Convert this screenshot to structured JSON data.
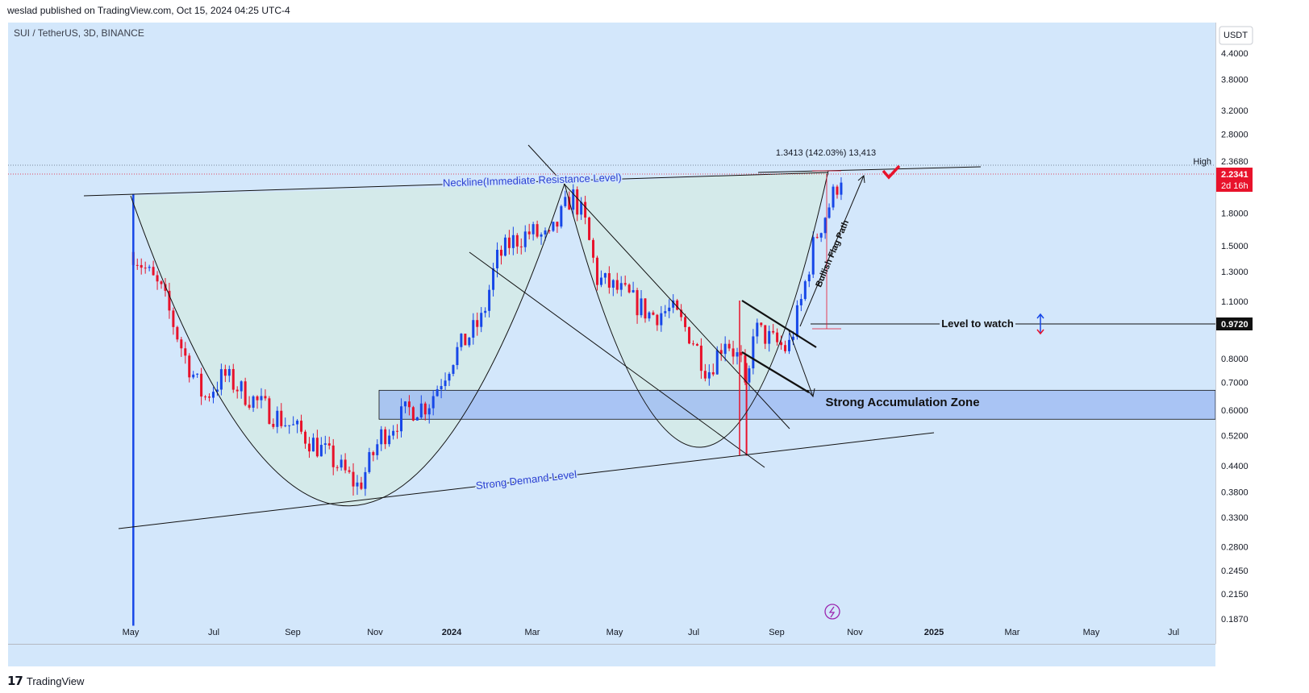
{
  "header": {
    "text": "weslad published on TradingView.com, Oct 15, 2024 04:25 UTC-4"
  },
  "symbol": {
    "text": "SUI / TetherUS, 3D, BINANCE"
  },
  "footer": {
    "brand": "TradingView"
  },
  "colors": {
    "up": "#1747e8",
    "down": "#e8122b",
    "background": "#d3e7fb",
    "zone": "#9bb8f2",
    "text_blue": "#2a3fd1",
    "current": "#e8122b"
  },
  "chart_data": {
    "type": "candlestick",
    "currency": "USDT",
    "scale": "log",
    "y_ticks": [
      "4.4000",
      "3.8000",
      "3.2000",
      "2.8000",
      "1.8000",
      "1.5000",
      "1.3000",
      "1.1000",
      "0.8000",
      "0.7000",
      "0.6000",
      "0.5200",
      "0.4400",
      "0.3800",
      "0.3300",
      "0.2800",
      "0.2450",
      "0.2150",
      "0.1870"
    ],
    "x_ticks": [
      "May",
      "Jul",
      "Sep",
      "Nov",
      "2024",
      "Mar",
      "May",
      "Jul",
      "Sep",
      "Nov",
      "2025",
      "Mar",
      "May",
      "Jul"
    ],
    "high_label": "High",
    "high_value": "2.3680",
    "current_price": "2.2341",
    "countdown": "2d 16h",
    "level_price": "0.9720",
    "measure_text": "1.3413 (142.03%) 13,413",
    "annotations": {
      "neckline": "Neckline(Immediate Resistance Level)",
      "demand": "Strong Demand Level",
      "accumulation": "Strong Accumulation Zone",
      "level_watch": "Level to watch",
      "flag_path": "Bullish Flag Path"
    },
    "key_points": [
      {
        "date": "2023-05-03",
        "high": 2.0,
        "low": 0.18
      },
      {
        "date": "2023-10-19",
        "low": 0.364
      },
      {
        "date": "2024-03-27",
        "high": 2.18
      },
      {
        "date": "2024-08-05",
        "low": 0.465
      },
      {
        "date": "2024-10-15",
        "price": 2.2341
      }
    ],
    "accumulation_zone": [
      0.57,
      0.67
    ]
  }
}
